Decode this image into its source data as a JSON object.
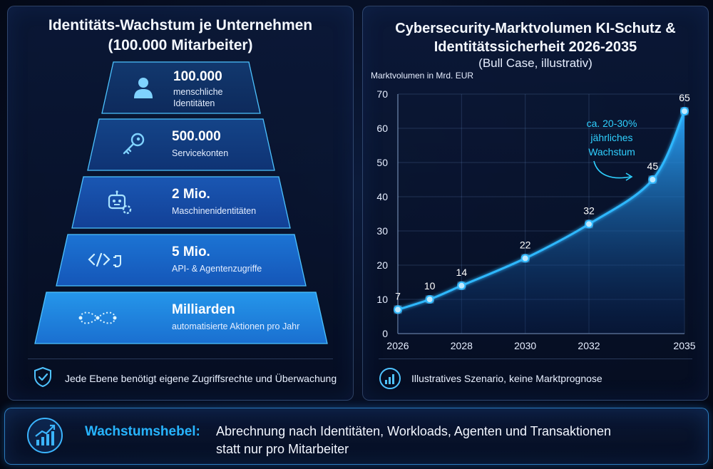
{
  "left": {
    "title_line1": "Identitäts-Wachstum je Unternehmen",
    "title_line2": "(100.000 Mitarbeiter)",
    "tiers": [
      {
        "value": "100.000",
        "desc_line1": "menschliche",
        "desc_line2": "Identitäten",
        "icon": "person-icon"
      },
      {
        "value": "500.000",
        "desc_line1": "Servicekonten",
        "desc_line2": "",
        "icon": "key-icon"
      },
      {
        "value": "2 Mio.",
        "desc_line1": "Maschinenidentitäten",
        "desc_line2": "",
        "icon": "robot-gear-icon"
      },
      {
        "value": "5 Mio.",
        "desc_line1": "API- & Agentenzugriffe",
        "desc_line2": "",
        "icon": "code-plug-icon"
      },
      {
        "value": "Milliarden",
        "desc_line1": "automatisierte Aktionen pro Jahr",
        "desc_line2": "",
        "icon": "infinity-icon"
      }
    ],
    "footer_note": "Jede Ebene benötigt eigene Zugriffsrechte und Überwachung"
  },
  "right": {
    "title_line1": "Cybersecurity-Marktvolumen KI-Schutz &",
    "title_line2": "Identitätssicherheit 2026-2035",
    "subtitle": "(Bull Case, illustrativ)",
    "footer_note": "Illustratives Szenario, keine Marktprognose"
  },
  "chart_data": {
    "type": "area",
    "title": "Cybersecurity-Marktvolumen KI-Schutz & Identitätssicherheit 2026-2035",
    "subtitle": "(Bull Case, illustrativ)",
    "ylabel": "Marktvolumen in Mrd. EUR",
    "xlabel": "",
    "x": [
      2026,
      2027,
      2028,
      2030,
      2032,
      2034,
      2035
    ],
    "values": [
      7,
      10,
      14,
      22,
      32,
      45,
      65
    ],
    "x_ticks": [
      "2026",
      "2028",
      "2030",
      "2032",
      "2035"
    ],
    "y_ticks": [
      0,
      10,
      20,
      30,
      40,
      50,
      60,
      70
    ],
    "xlim": [
      2026,
      2035
    ],
    "ylim": [
      0,
      70
    ],
    "annotation": {
      "line1": "ca. 20-30%",
      "line2": "jährliches",
      "line3": "Wachstum"
    },
    "grid": true,
    "color": "#2fb8ff"
  },
  "bottom": {
    "label": "Wachstumshebel:",
    "text_line1": "Abrechnung nach Identitäten, Workloads, Agenten und Transaktionen",
    "text_line2": "statt nur pro Mitarbeiter"
  }
}
